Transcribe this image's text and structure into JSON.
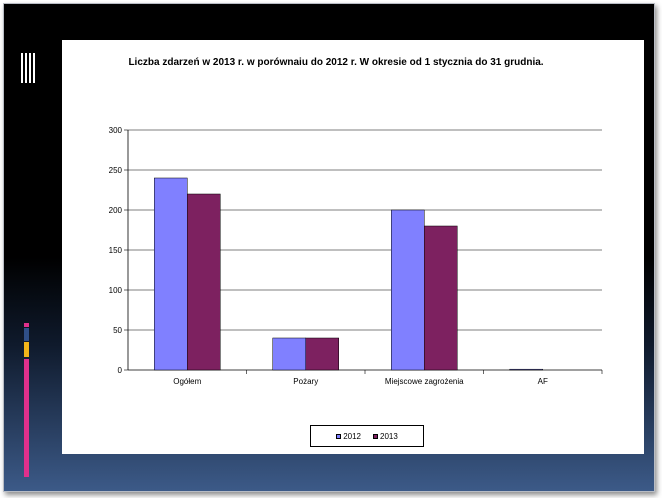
{
  "colors": {
    "series_2012": "#8080ff",
    "series_2013": "#7d2160",
    "accent_bars": [
      "#e0308c",
      "#2f4f88",
      "#f2b51a",
      "#e0308c"
    ]
  },
  "chart_data": {
    "type": "bar",
    "title": "Liczba zdarzeń w 2013 r. w porównaiu do 2012 r. W okresie od 1 stycznia do 31 grudnia.",
    "categories": [
      "Ogółem",
      "Pożary",
      "Miejscowe zagrożenia",
      "AF"
    ],
    "series": [
      {
        "name": "2012",
        "values": [
          240,
          40,
          200,
          1
        ]
      },
      {
        "name": "2013",
        "values": [
          220,
          40,
          180,
          0
        ]
      }
    ],
    "ylim": [
      0,
      300
    ],
    "yticks": [
      0,
      50,
      100,
      150,
      200,
      250,
      300
    ],
    "grid": true,
    "legend_position": "bottom"
  }
}
